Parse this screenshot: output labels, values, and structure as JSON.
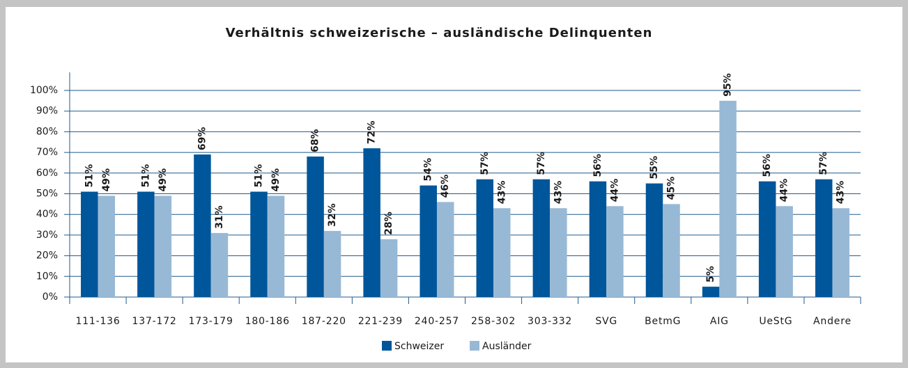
{
  "chart_data": {
    "type": "bar",
    "title": "Verhältnis schweizerische – ausländische Delinquenten",
    "categories": [
      "111-136",
      "137-172",
      "173-179",
      "180-186",
      "187-220",
      "221-239",
      "240-257",
      "258-302",
      "303-332",
      "SVG",
      "BetmG",
      "AIG",
      "UeStG",
      "Andere"
    ],
    "series": [
      {
        "name": "Schweizer",
        "color": "#00569a",
        "values": [
          51,
          51,
          69,
          51,
          68,
          72,
          54,
          57,
          57,
          56,
          55,
          5,
          56,
          57
        ],
        "value_labels": [
          "51%",
          "51%",
          "69%",
          "51%",
          "68%",
          "72%",
          "54%",
          "57%",
          "57%",
          "56%",
          "55%",
          "5%",
          "56%",
          "57%"
        ]
      },
      {
        "name": "Ausländer",
        "color": "#98b9d5",
        "values": [
          49,
          49,
          31,
          49,
          32,
          28,
          46,
          43,
          43,
          44,
          45,
          95,
          44,
          43
        ],
        "value_labels": [
          "49%",
          "49%",
          "31%",
          "49%",
          "32%",
          "28%",
          "46%",
          "43%",
          "43%",
          "44%",
          "45%",
          "95%",
          "44%",
          "43%"
        ]
      }
    ],
    "ylim": [
      0,
      100
    ],
    "yticks": [
      {
        "value": 0,
        "label": "0%"
      },
      {
        "value": 10,
        "label": "10%"
      },
      {
        "value": 20,
        "label": "20%"
      },
      {
        "value": 30,
        "label": "30%"
      },
      {
        "value": 40,
        "label": "40%"
      },
      {
        "value": 50,
        "label": "50%"
      },
      {
        "value": 60,
        "label": "60%"
      },
      {
        "value": 70,
        "label": "70%"
      },
      {
        "value": 80,
        "label": "80%"
      },
      {
        "value": 90,
        "label": "90%"
      },
      {
        "value": 100,
        "label": "100%"
      }
    ],
    "grid": true,
    "legend": "bottom"
  }
}
